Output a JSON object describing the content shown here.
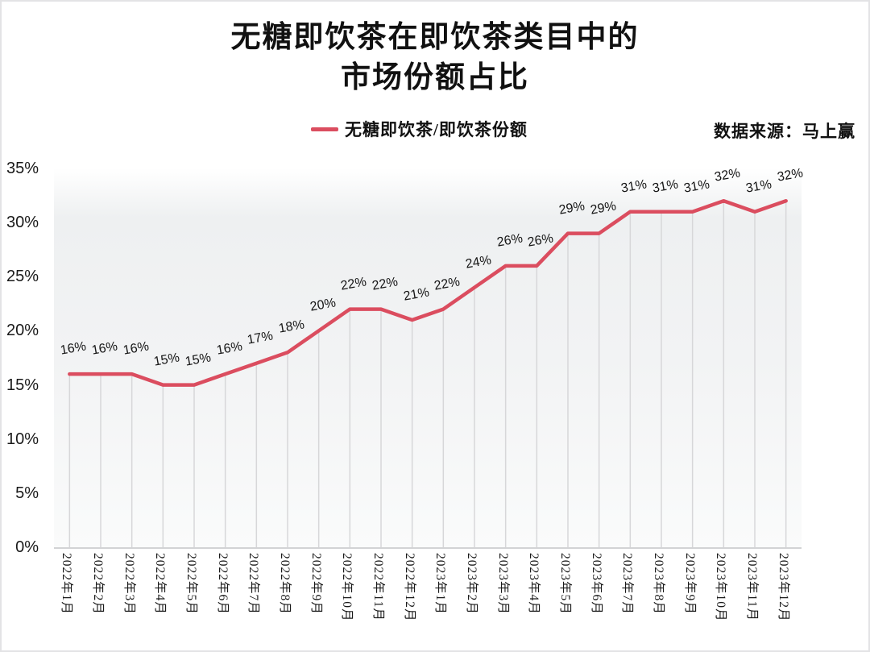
{
  "header": {
    "title_line1": "无糖即饮茶在即饮茶类目中的",
    "title_line2": "市场份额占比"
  },
  "legend": {
    "series_label": "无糖即饮茶/即饮茶份额",
    "swatch_color": "#db4d5f"
  },
  "source": {
    "label": "数据来源：马上赢"
  },
  "colors": {
    "series_line": "#db4d5f",
    "drop_line": "#d7d7d9",
    "axis_line": "#d2d3d5"
  },
  "chart_data": {
    "type": "line",
    "title": "无糖即饮茶在即饮茶类目中的市场份额占比",
    "legend_position": "top",
    "grid": "vertical-drop-lines",
    "categories": [
      "2022年1月",
      "2022年2月",
      "2022年3月",
      "2022年4月",
      "2022年5月",
      "2022年6月",
      "2022年7月",
      "2022年8月",
      "2022年9月",
      "2022年10月",
      "2022年11月",
      "2022年12月",
      "2023年1月",
      "2023年2月",
      "2023年3月",
      "2023年4月",
      "2023年5月",
      "2023年6月",
      "2023年7月",
      "2023年8月",
      "2023年9月",
      "2023年10月",
      "2023年11月",
      "2023年12月"
    ],
    "series": [
      {
        "name": "无糖即饮茶/即饮茶份额",
        "color": "#db4d5f",
        "values": [
          16,
          16,
          16,
          15,
          15,
          16,
          17,
          18,
          20,
          22,
          22,
          21,
          22,
          24,
          26,
          26,
          29,
          29,
          31,
          31,
          31,
          32,
          31,
          32
        ],
        "point_labels": [
          "16%",
          "16%",
          "16%",
          "15%",
          "15%",
          "16%",
          "17%",
          "18%",
          "20%",
          "22%",
          "22%",
          "21%",
          "22%",
          "24%",
          "26%",
          "26%",
          "29%",
          "29%",
          "31%",
          "31%",
          "31%",
          "32%",
          "31%",
          "32%"
        ]
      }
    ],
    "y_axis": {
      "min": 0,
      "max": 35,
      "step": 5,
      "tick_values": [
        35,
        30,
        25,
        20,
        15,
        10,
        5,
        0
      ],
      "tick_labels": [
        "35%",
        "30%",
        "25%",
        "20%",
        "15%",
        "10%",
        "5%",
        "0%"
      ]
    },
    "xlabel": "",
    "ylabel": ""
  }
}
